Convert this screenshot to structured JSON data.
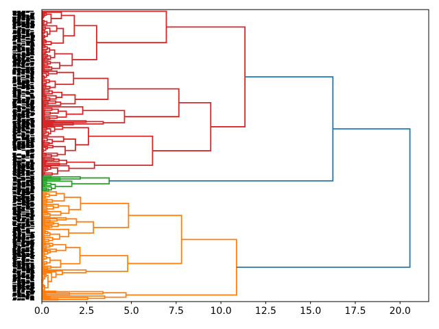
{
  "figure": {
    "background": "#ffffff",
    "title": ""
  },
  "chart_data": {
    "type": "dendrogram",
    "orientation": "right",
    "title": "",
    "xlabel": "",
    "ylabel": "",
    "grid": false,
    "legend": null,
    "x_axis": {
      "lim": [
        0,
        21.6
      ],
      "ticks": [
        0,
        2.5,
        5,
        7.5,
        10,
        12.5,
        15,
        17.5,
        20
      ],
      "tick_labels": [
        "0.0",
        "2.5",
        "5.0",
        "7.5",
        "10.0",
        "12.5",
        "15.0",
        "17.5",
        "20.0"
      ]
    },
    "leaf_axis": {
      "total_leaves": 300,
      "labels_legible": false,
      "label_color": "#000000"
    },
    "colors": {
      "above_threshold_link": "#1f77b4",
      "cluster_red": "#d62728",
      "cluster_green": "#2ca02c",
      "cluster_orange": "#ff7f0e",
      "spine": "#000000",
      "background": "#ffffff"
    },
    "line_width": 1.8,
    "clusters": [
      {
        "name": "red",
        "color_key": "cluster_red",
        "leaves": 171,
        "root_height": 11.34,
        "children": [
          {
            "leaves": 62,
            "height": 6.95
          },
          {
            "leaves": 109,
            "height": 9.43,
            "children": [
              {
                "leaves": 57,
                "height": 7.65
              },
              {
                "leaves": 52,
                "height": 6.18
              }
            ]
          }
        ]
      },
      {
        "name": "green",
        "color_key": "cluster_green",
        "leaves": 16,
        "root_height": 3.76,
        "children": null
      },
      {
        "name": "orange",
        "color_key": "cluster_orange",
        "leaves": 113,
        "root_height": 10.87,
        "children": [
          {
            "leaves": 103,
            "height": 7.8
          },
          {
            "leaves": 10,
            "height": 4.7
          }
        ]
      }
    ],
    "above_threshold_links": [
      {
        "height": 16.25,
        "merges": [
          "red",
          "green"
        ]
      },
      {
        "height": 20.55,
        "merges": [
          "join_0",
          "orange"
        ]
      }
    ]
  }
}
